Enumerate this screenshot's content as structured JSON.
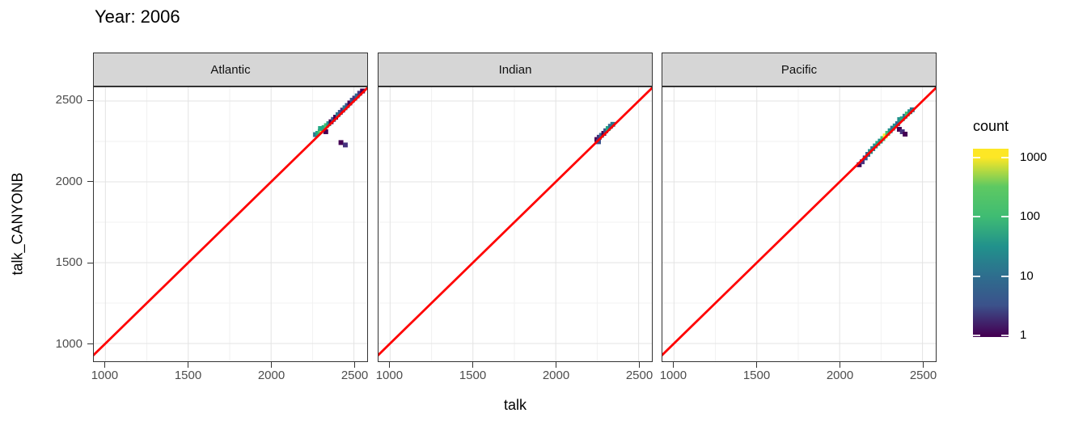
{
  "title": "Year: 2006",
  "axes": {
    "x_title": "talk",
    "y_title": "talk_CANYONB",
    "x_ticks": [
      1000,
      1500,
      2000,
      2500
    ],
    "y_ticks": [
      1000,
      1500,
      2000,
      2500
    ],
    "minor_ticks": [
      1250,
      1750,
      2250
    ],
    "x_range": [
      930,
      2580
    ],
    "y_range": [
      890,
      2585
    ]
  },
  "legend": {
    "title": "count",
    "ticks": [
      "1000",
      "100",
      "10",
      "1"
    ],
    "scale": "log10",
    "palette": "viridis"
  },
  "colors": {
    "identity_line": "#ff0000",
    "strip_bg": "#d6d6d6",
    "panel_border": "#333333",
    "grid_major": "#e3e3e3",
    "grid_minor": "#f2f2f2",
    "tick_label": "#4d4d4d",
    "viridis_min": "#440154",
    "viridis_max": "#fde725"
  },
  "chart_data": {
    "type": "heatmap",
    "subtype": "2d-binned scatter (geom_bin2d) with y=x identity line, faceted by ocean",
    "title": "Year: 2006",
    "xlabel": "talk",
    "ylabel": "talk_CANYONB",
    "xlim": [
      930,
      2580
    ],
    "ylim": [
      890,
      2585
    ],
    "x_ticks": [
      1000,
      1500,
      2000,
      2500
    ],
    "y_ticks": [
      1000,
      1500,
      2000,
      2500
    ],
    "grid": "major and minor, light gray on white",
    "legend": {
      "title": "count",
      "position": "right",
      "scale": "log10",
      "ticks": [
        1000,
        100,
        10,
        1
      ]
    },
    "identity_line": {
      "slope": 1,
      "intercept": 0,
      "color": "#ff0000"
    },
    "bin_size_units": 28,
    "facets": [
      {
        "label": "Atlantic",
        "bins": [
          [
            2268,
            2292,
            "#2a788e"
          ],
          [
            2282,
            2300,
            "#22a884"
          ],
          [
            2296,
            2312,
            "#44bf70"
          ],
          [
            2308,
            2322,
            "#fde725"
          ],
          [
            2298,
            2330,
            "#22a884"
          ],
          [
            2320,
            2336,
            "#22a884"
          ],
          [
            2334,
            2348,
            "#44bf70"
          ],
          [
            2348,
            2360,
            "#21918c"
          ],
          [
            2330,
            2310,
            "#440154"
          ],
          [
            2362,
            2372,
            "#440154"
          ],
          [
            2376,
            2386,
            "#3b528b"
          ],
          [
            2390,
            2400,
            "#440154"
          ],
          [
            2404,
            2416,
            "#2a788e"
          ],
          [
            2418,
            2430,
            "#3b528b"
          ],
          [
            2432,
            2444,
            "#46327e"
          ],
          [
            2446,
            2458,
            "#2a788e"
          ],
          [
            2460,
            2472,
            "#3b528b"
          ],
          [
            2475,
            2488,
            "#440154"
          ],
          [
            2490,
            2505,
            "#3b528b"
          ],
          [
            2505,
            2518,
            "#46327e"
          ],
          [
            2520,
            2532,
            "#31688e"
          ],
          [
            2535,
            2548,
            "#46327e"
          ],
          [
            2552,
            2562,
            "#440154"
          ],
          [
            2422,
            2243,
            "#440154"
          ],
          [
            2448,
            2228,
            "#46327e"
          ]
        ]
      },
      {
        "label": "Indian",
        "bins": [
          [
            2248,
            2262,
            "#440154"
          ],
          [
            2258,
            2248,
            "#3b528b"
          ],
          [
            2262,
            2276,
            "#46327e"
          ],
          [
            2276,
            2288,
            "#31688e"
          ],
          [
            2290,
            2300,
            "#440154"
          ],
          [
            2302,
            2316,
            "#3b528b"
          ],
          [
            2316,
            2330,
            "#22a884"
          ],
          [
            2330,
            2344,
            "#31688e"
          ],
          [
            2344,
            2356,
            "#2a788e"
          ]
        ]
      },
      {
        "label": "Pacific",
        "bins": [
          [
            2118,
            2106,
            "#440154"
          ],
          [
            2136,
            2124,
            "#46327e"
          ],
          [
            2154,
            2148,
            "#3b528b"
          ],
          [
            2170,
            2170,
            "#31688e"
          ],
          [
            2185,
            2188,
            "#21918c"
          ],
          [
            2200,
            2205,
            "#2a788e"
          ],
          [
            2215,
            2222,
            "#21918c"
          ],
          [
            2230,
            2238,
            "#22a884"
          ],
          [
            2245,
            2252,
            "#21918c"
          ],
          [
            2260,
            2268,
            "#44bf70"
          ],
          [
            2275,
            2284,
            "#fde725"
          ],
          [
            2290,
            2300,
            "#44bf70"
          ],
          [
            2305,
            2316,
            "#21918c"
          ],
          [
            2320,
            2332,
            "#2a788e"
          ],
          [
            2335,
            2346,
            "#21918c"
          ],
          [
            2350,
            2360,
            "#31688e"
          ],
          [
            2362,
            2385,
            "#21918c"
          ],
          [
            2378,
            2390,
            "#22a884"
          ],
          [
            2394,
            2406,
            "#2a788e"
          ],
          [
            2408,
            2420,
            "#44bf70"
          ],
          [
            2424,
            2434,
            "#21918c"
          ],
          [
            2438,
            2446,
            "#2a788e"
          ],
          [
            2360,
            2325,
            "#440154"
          ],
          [
            2378,
            2310,
            "#46327e"
          ],
          [
            2395,
            2295,
            "#440154"
          ]
        ]
      }
    ]
  }
}
